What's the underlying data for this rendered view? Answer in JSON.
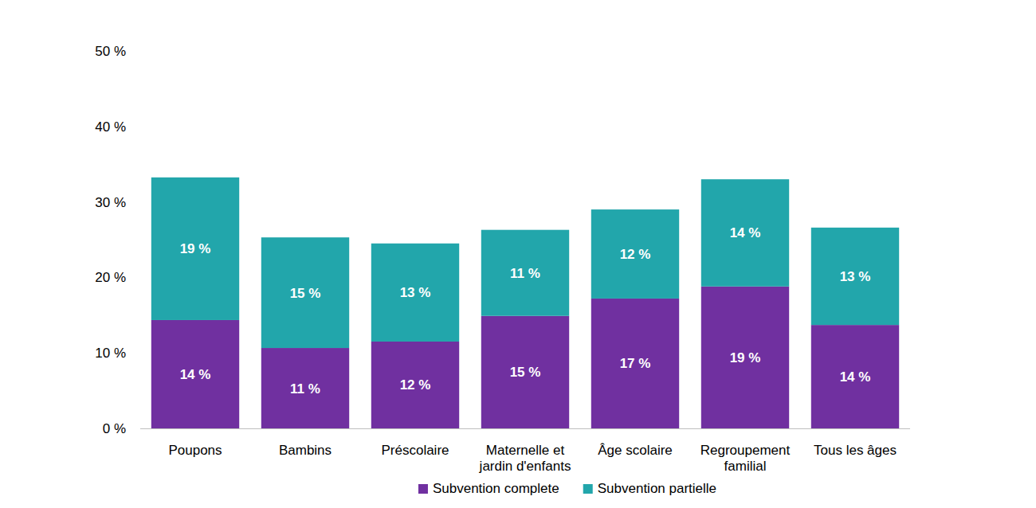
{
  "chart_data": {
    "type": "bar",
    "stacked": true,
    "data_labels": true,
    "grid": false,
    "legend": "bottom",
    "categories": [
      "Poupons",
      "Bambins",
      "Préscolaire",
      "Maternelle et jardin d'enfants",
      "Âge scolaire",
      "Regroupement familial",
      "Tous les âges"
    ],
    "series": [
      {
        "name": "Subvention complete",
        "color": "#7030a0",
        "values": [
          14.35,
          10.65,
          11.5,
          14.9,
          17.2,
          18.8,
          13.7
        ],
        "value_labels": [
          "14 %",
          "11 %",
          "12 %",
          "15 %",
          "17 %",
          "19 %",
          "14 %"
        ]
      },
      {
        "name": "Subvention partielle",
        "color": "#22a6ab",
        "values": [
          18.9,
          14.65,
          13.0,
          11.4,
          11.8,
          14.2,
          12.9
        ],
        "value_labels": [
          "19 %",
          "15 %",
          "13 %",
          "11 %",
          "12 %",
          "14 %",
          "13 %"
        ]
      }
    ],
    "ylim": [
      0,
      50
    ],
    "yticks": [
      {
        "value": 0,
        "label": "0 %"
      },
      {
        "value": 10,
        "label": "10 %"
      },
      {
        "value": 20,
        "label": "20 %"
      },
      {
        "value": 30,
        "label": "30 %"
      },
      {
        "value": 40,
        "label": "40 %"
      },
      {
        "value": 50,
        "label": "50 %"
      }
    ]
  }
}
